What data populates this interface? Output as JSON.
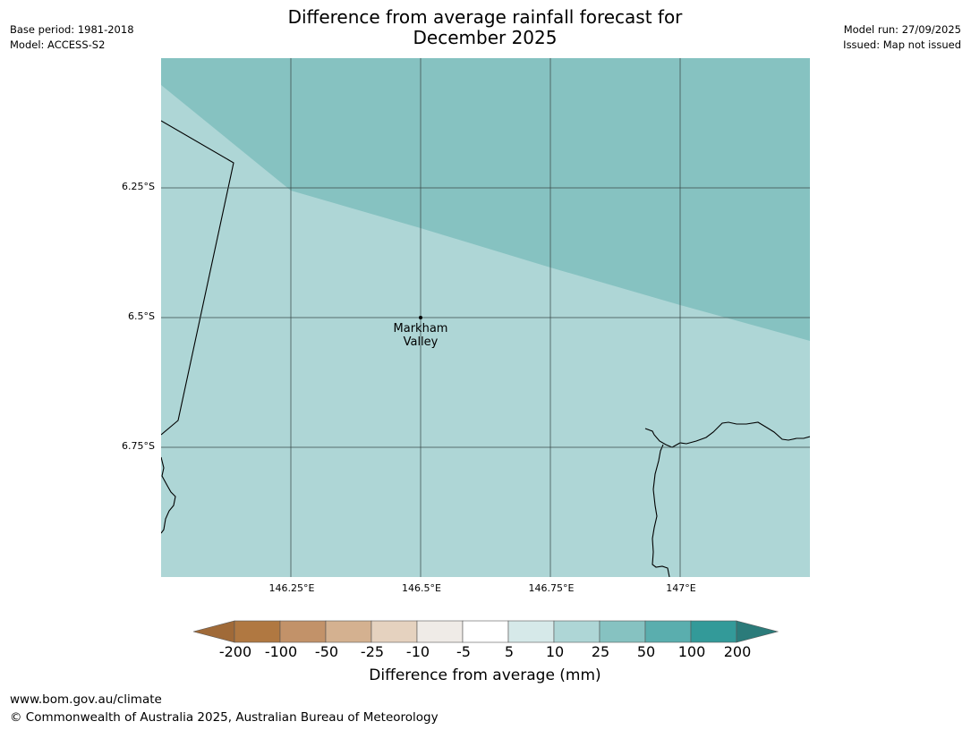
{
  "header": {
    "title_line1": "Difference from average rainfall forecast for",
    "title_line2": "December 2025",
    "base_period": "Base period: 1981-2018",
    "model": "Model: ACCESS-S2",
    "model_run": "Model run: 27/09/2025",
    "issued": "Issued: Map not issued"
  },
  "map": {
    "lat_labels": [
      "6.25°S",
      "6.5°S",
      "6.75°S"
    ],
    "lon_labels": [
      "146.25°E",
      "146.5°E",
      "146.75°E",
      "147°E"
    ],
    "place": {
      "name_line1": "Markham",
      "name_line2": "Valley"
    },
    "colors": {
      "category_25_50": "#86c2c1",
      "category_10_25": "#aed6d6",
      "coastline": "#000000",
      "grid": "#3a4a4a"
    }
  },
  "colorbar": {
    "title": "Difference from average (mm)",
    "ticks": [
      "-200",
      "-100",
      "-50",
      "-25",
      "-10",
      "-5",
      "5",
      "10",
      "25",
      "50",
      "100",
      "200"
    ],
    "colors": [
      "#a06a38",
      "#b07841",
      "#c29269",
      "#d4b190",
      "#e5d2bf",
      "#efebe7",
      "#ffffff",
      "#d6e9e9",
      "#aed6d6",
      "#86c2c1",
      "#5aaeae",
      "#339a99",
      "#2b7b7a"
    ]
  },
  "footer": {
    "url": "www.bom.gov.au/climate",
    "copyright": "© Commonwealth of Australia 2025, Australian Bureau of Meteorology"
  }
}
